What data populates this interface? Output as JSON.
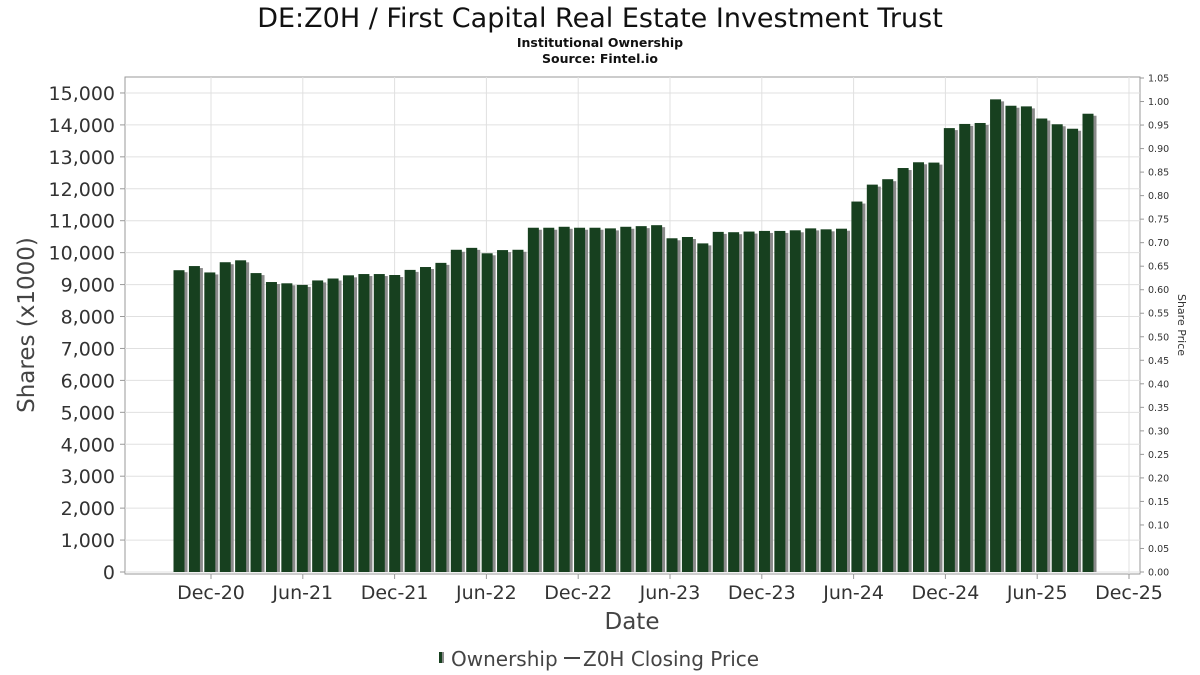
{
  "chart_data": {
    "type": "bar",
    "title": "DE:Z0H / First Capital Real Estate Investment Trust",
    "subtitle": "Institutional Ownership",
    "source": "Source: Fintel.io",
    "xlabel": "Date",
    "ylabel": "Shares (x1000)",
    "y2label": "Share Price",
    "ylim": [
      0,
      15500
    ],
    "y2lim": [
      0,
      1.05
    ],
    "y_ticks": [
      "0",
      "1,000",
      "2,000",
      "3,000",
      "4,000",
      "5,000",
      "6,000",
      "7,000",
      "8,000",
      "9,000",
      "10,000",
      "11,000",
      "12,000",
      "13,000",
      "14,000",
      "15,000"
    ],
    "y2_ticks": [
      "0.00",
      "0.05",
      "0.10",
      "0.15",
      "0.20",
      "0.25",
      "0.30",
      "0.35",
      "0.40",
      "0.45",
      "0.50",
      "0.55",
      "0.60",
      "0.65",
      "0.70",
      "0.75",
      "0.80",
      "0.85",
      "0.90",
      "0.95",
      "1.00",
      "1.05"
    ],
    "x_ticks": [
      "Dec-20",
      "Jun-21",
      "Dec-21",
      "Jun-22",
      "Dec-22",
      "Jun-23",
      "Dec-23",
      "Jun-24",
      "Dec-24",
      "Jun-25",
      "Dec-25"
    ],
    "grid": true,
    "legend_position": "bottom-center",
    "colors": {
      "bar": "#17401f",
      "bar_shadow": "#8a8a8a",
      "grid": "#e0e0e0",
      "axis": "#999999"
    },
    "series": [
      {
        "name": "Ownership",
        "values": [
          9450,
          9580,
          9380,
          9700,
          9760,
          9360,
          9080,
          9040,
          8990,
          9130,
          9190,
          9290,
          9330,
          9330,
          9300,
          9460,
          9550,
          9680,
          10090,
          10150,
          9980,
          10080,
          10090,
          10780,
          10780,
          10810,
          10780,
          10780,
          10760,
          10810,
          10830,
          10860,
          10450,
          10490,
          10290,
          10650,
          10640,
          10660,
          10680,
          10680,
          10700,
          10760,
          10730,
          10750,
          11600,
          12130,
          12300,
          12650,
          12830,
          12820,
          13900,
          14030,
          14060,
          14800,
          14600,
          14580,
          14200,
          14020,
          13880,
          14350
        ]
      },
      {
        "name": "Z0H Closing Price",
        "values": []
      }
    ]
  }
}
